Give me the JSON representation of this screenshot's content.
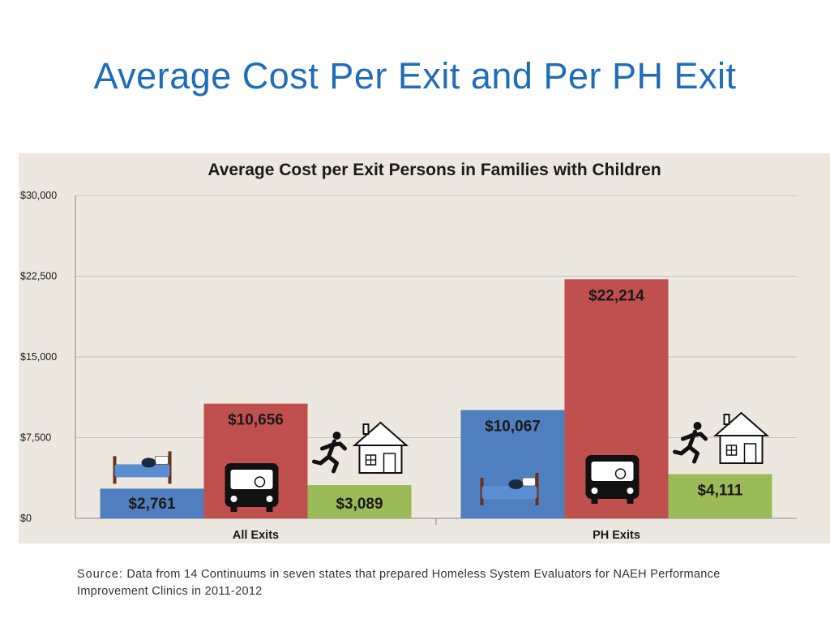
{
  "slide": {
    "title": "Average Cost Per Exit and Per PH Exit"
  },
  "source": {
    "label": "Source:",
    "text": " Data   from 14 Continuums in seven states that prepared Homeless System Evaluators for NAEH Performance Improvement  Clinics in 2011-2012"
  },
  "colors": {
    "title": "#1f6db8",
    "panel_bg": "#ece8df",
    "shelter": "#4f7fbf",
    "transitional": "#c0504d",
    "rapid": "#9bbb59",
    "grid": "#c9c5bc",
    "text": "#1a1a1a"
  },
  "chart_data": {
    "type": "bar",
    "title": "Average Cost per Exit Persons in  Families with Children",
    "xlabel": "",
    "ylabel": "",
    "ylim": [
      0,
      30000
    ],
    "yticks": [
      0,
      7500,
      15000,
      22500,
      30000
    ],
    "ytick_labels": [
      "$0",
      "$7,500",
      "$15,000",
      "$22,500",
      "$30,000"
    ],
    "grid": true,
    "legend": "bottom",
    "categories": [
      "All Exits",
      "PH Exits"
    ],
    "series": [
      {
        "name": "Shelter",
        "values": [
          2761,
          10067
        ],
        "labels": [
          "$2,761",
          "$10,067"
        ],
        "icon": "bed-icon"
      },
      {
        "name": "Transitional",
        "values": [
          10656,
          22214
        ],
        "labels": [
          "$10,656",
          "$22,214"
        ],
        "icon": "bus-icon"
      },
      {
        "name": "Rapid Rehousing",
        "values": [
          3089,
          4111
        ],
        "labels": [
          "$3,089",
          "$4,111"
        ],
        "icon": "running-person-house-icon"
      }
    ]
  }
}
